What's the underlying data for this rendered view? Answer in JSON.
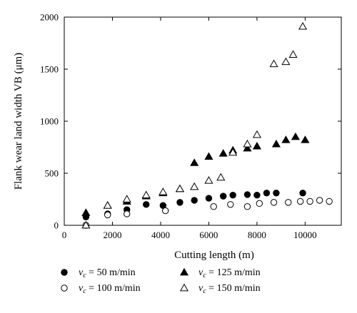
{
  "chart_data": {
    "type": "scatter",
    "title": "",
    "xlabel": "Cutting length (m)",
    "ylabel": "Flank wear  land width VB (μm)",
    "xlim": [
      0,
      11500
    ],
    "ylim": [
      0,
      2000
    ],
    "xticks": [
      0,
      2000,
      4000,
      6000,
      8000,
      10000
    ],
    "yticks": [
      0,
      500,
      1000,
      1500,
      2000
    ],
    "grid": false,
    "legend_position": "bottom",
    "series": [
      {
        "name": "v_c = 50 m/min",
        "legend_unit": "m/min",
        "legend_value": "50",
        "marker": "filled-circle",
        "x": [
          900,
          1800,
          2600,
          3400,
          4100,
          4800,
          5400,
          6000,
          6600,
          7000,
          7600,
          8000,
          8400,
          8800,
          9900
        ],
        "y": [
          80,
          110,
          150,
          200,
          190,
          220,
          240,
          260,
          280,
          290,
          295,
          290,
          310,
          310,
          310
        ]
      },
      {
        "name": "v_c = 100 m/min",
        "legend_unit": "m/min",
        "legend_value": "100",
        "marker": "open-circle",
        "x": [
          900,
          1800,
          2600,
          4200,
          6200,
          6900,
          7600,
          8100,
          8700,
          9300,
          9800,
          10200,
          10600,
          11000
        ],
        "y": [
          0,
          100,
          110,
          140,
          180,
          200,
          180,
          210,
          220,
          220,
          230,
          230,
          240,
          230
        ]
      },
      {
        "name": "v_c = 125 m/min",
        "legend_unit": "m/min",
        "legend_value": "125",
        "marker": "filled-triangle",
        "x": [
          900,
          1800,
          2600,
          3400,
          4100,
          4800,
          5400,
          6000,
          6600,
          7000,
          7600,
          8000,
          8800,
          9200,
          9600,
          10000
        ],
        "y": [
          120,
          190,
          230,
          280,
          310,
          350,
          600,
          660,
          690,
          720,
          740,
          760,
          780,
          820,
          850,
          820
        ]
      },
      {
        "name": "v_c = 150 m/min",
        "legend_unit": "m/min",
        "legend_value": "150",
        "marker": "open-triangle",
        "x": [
          900,
          1800,
          2600,
          3400,
          4100,
          4800,
          5400,
          6000,
          6500,
          7000,
          7600,
          8000,
          8700,
          9200,
          9500,
          9900
        ],
        "y": [
          0,
          190,
          250,
          290,
          320,
          350,
          370,
          430,
          460,
          700,
          780,
          870,
          1550,
          1570,
          1640,
          1910
        ]
      }
    ]
  }
}
